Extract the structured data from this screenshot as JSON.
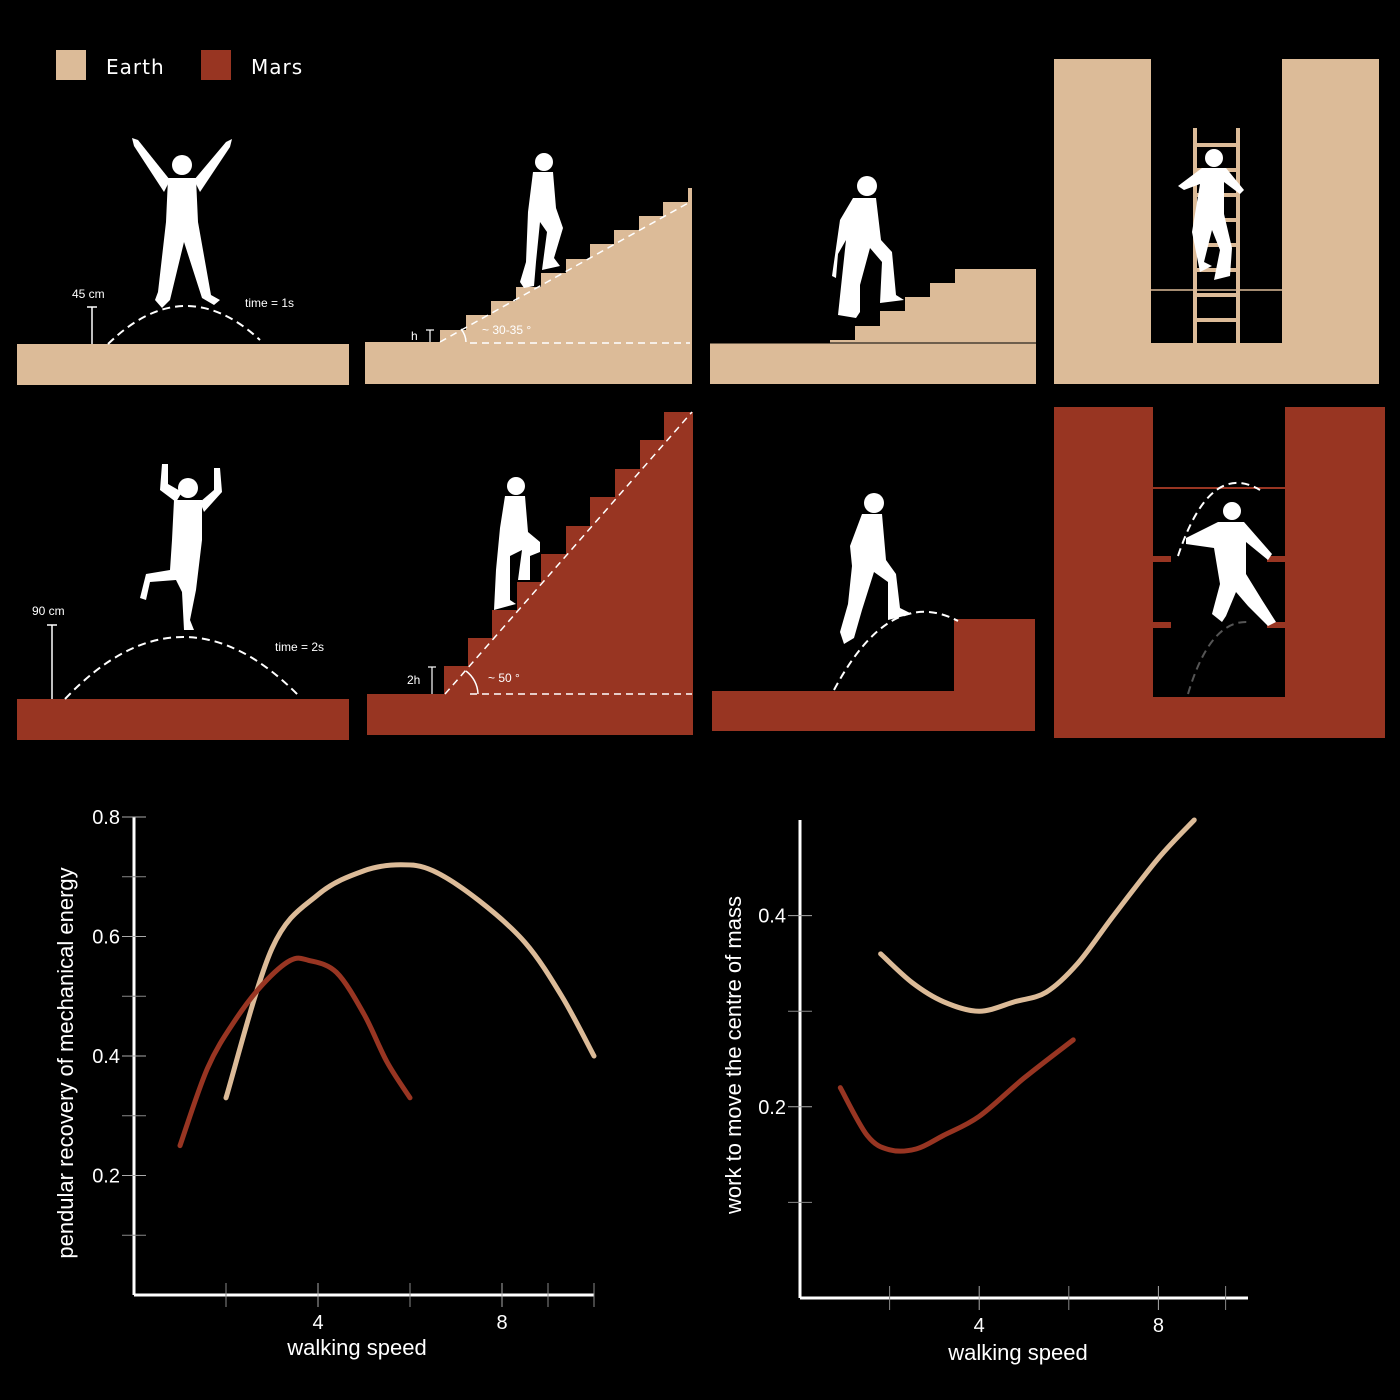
{
  "colors": {
    "earth": "#dcbb98",
    "mars": "#983522",
    "background": "#000000",
    "figure": "#ffffff"
  },
  "legend": [
    {
      "name": "Earth",
      "color": "#dcbb98"
    },
    {
      "name": "Mars",
      "color": "#983522"
    }
  ],
  "panels": {
    "earth_jump": {
      "height_label": "45 cm",
      "time_label": "time = 1s"
    },
    "earth_stairs": {
      "step_label": "h",
      "angle_label": "~ 30-35 °"
    },
    "mars_jump": {
      "height_label": "90 cm",
      "time_label": "time = 2s"
    },
    "mars_stairs": {
      "step_label": "2h",
      "angle_label": "~ 50 °"
    }
  },
  "chart_data": [
    {
      "type": "line",
      "xlabel": "walking speed",
      "ylabel": "pendular recovery of mechanical energy",
      "xlim": [
        0,
        10
      ],
      "ylim": [
        0,
        0.8
      ],
      "x_ticks": [
        4,
        8
      ],
      "y_ticks": [
        0.2,
        0.4,
        0.6,
        0.8
      ],
      "grid": false,
      "series": [
        {
          "name": "Earth",
          "color": "#dcbb98",
          "x": [
            2.0,
            3.0,
            4.0,
            5.0,
            5.8,
            6.5,
            7.5,
            8.5,
            9.3,
            10.0
          ],
          "y": [
            0.33,
            0.58,
            0.67,
            0.71,
            0.72,
            0.71,
            0.66,
            0.59,
            0.5,
            0.4
          ]
        },
        {
          "name": "Mars",
          "color": "#983522",
          "x": [
            1.0,
            1.6,
            2.2,
            2.8,
            3.4,
            3.8,
            4.4,
            5.0,
            5.5,
            6.0
          ],
          "y": [
            0.25,
            0.38,
            0.46,
            0.52,
            0.56,
            0.56,
            0.54,
            0.47,
            0.39,
            0.33
          ]
        }
      ]
    },
    {
      "type": "line",
      "xlabel": "walking speed",
      "ylabel": "work to move the centre of mass",
      "xlim": [
        0,
        10
      ],
      "ylim": [
        0,
        0.5
      ],
      "x_ticks": [
        4,
        8
      ],
      "y_ticks": [
        0.2,
        0.4
      ],
      "grid": false,
      "series": [
        {
          "name": "Earth",
          "color": "#dcbb98",
          "x": [
            1.8,
            2.5,
            3.2,
            4.0,
            4.8,
            5.5,
            6.2,
            7.0,
            8.0,
            8.8
          ],
          "y": [
            0.36,
            0.33,
            0.31,
            0.3,
            0.31,
            0.32,
            0.35,
            0.4,
            0.46,
            0.5
          ]
        },
        {
          "name": "Mars",
          "color": "#983522",
          "x": [
            0.9,
            1.5,
            2.0,
            2.6,
            3.2,
            4.0,
            5.0,
            6.1
          ],
          "y": [
            0.22,
            0.17,
            0.155,
            0.156,
            0.17,
            0.19,
            0.23,
            0.27
          ]
        }
      ]
    }
  ]
}
